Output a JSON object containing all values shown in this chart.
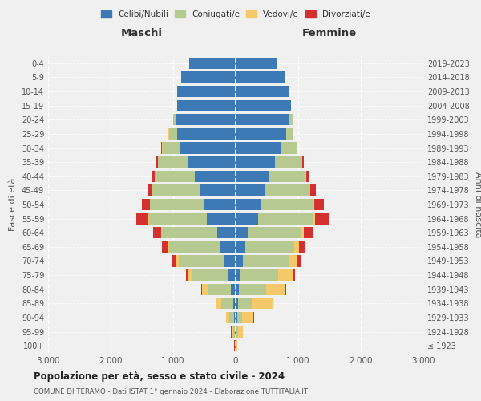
{
  "age_groups": [
    "100+",
    "95-99",
    "90-94",
    "85-89",
    "80-84",
    "75-79",
    "70-74",
    "65-69",
    "60-64",
    "55-59",
    "50-54",
    "45-49",
    "40-44",
    "35-39",
    "30-34",
    "25-29",
    "20-24",
    "15-19",
    "10-14",
    "5-9",
    "0-4"
  ],
  "birth_years": [
    "≤ 1923",
    "1924-1928",
    "1929-1933",
    "1934-1938",
    "1939-1943",
    "1944-1948",
    "1949-1953",
    "1954-1958",
    "1959-1963",
    "1964-1968",
    "1969-1973",
    "1974-1978",
    "1979-1983",
    "1984-1988",
    "1989-1993",
    "1994-1998",
    "1999-2003",
    "2004-2008",
    "2009-2013",
    "2014-2018",
    "2019-2023"
  ],
  "colors": {
    "celibi": "#3d7ab5",
    "coniugati": "#b5c990",
    "vedovi": "#f5c96a",
    "divorziati": "#d43030"
  },
  "males": {
    "celibi": [
      10,
      18,
      28,
      38,
      75,
      120,
      185,
      255,
      300,
      460,
      510,
      580,
      660,
      760,
      880,
      930,
      950,
      930,
      940,
      870,
      750
    ],
    "coniugati": [
      4,
      25,
      70,
      190,
      370,
      580,
      730,
      810,
      880,
      930,
      860,
      760,
      630,
      480,
      290,
      140,
      45,
      8,
      0,
      0,
      0
    ],
    "vedovi": [
      4,
      25,
      55,
      90,
      90,
      55,
      45,
      28,
      18,
      13,
      8,
      4,
      4,
      4,
      4,
      4,
      4,
      0,
      0,
      0,
      0
    ],
    "divorziati": [
      2,
      4,
      4,
      8,
      12,
      45,
      65,
      90,
      120,
      190,
      120,
      70,
      45,
      25,
      12,
      4,
      4,
      0,
      0,
      0,
      0
    ]
  },
  "females": {
    "celibi": [
      8,
      18,
      28,
      38,
      55,
      75,
      120,
      160,
      190,
      360,
      410,
      460,
      540,
      630,
      730,
      810,
      860,
      880,
      860,
      800,
      660
    ],
    "coniugati": [
      4,
      25,
      70,
      220,
      430,
      600,
      730,
      780,
      850,
      880,
      830,
      730,
      580,
      430,
      240,
      110,
      45,
      8,
      0,
      0,
      0
    ],
    "vedovi": [
      8,
      70,
      190,
      330,
      300,
      230,
      140,
      70,
      45,
      25,
      13,
      8,
      4,
      4,
      4,
      4,
      4,
      0,
      0,
      0,
      0
    ],
    "divorziati": [
      2,
      4,
      8,
      8,
      18,
      45,
      65,
      90,
      140,
      220,
      160,
      90,
      45,
      25,
      12,
      4,
      4,
      0,
      0,
      0,
      0
    ]
  },
  "xlim": 3000,
  "title": "Popolazione per età, sesso e stato civile - 2024",
  "subtitle": "COMUNE DI TERAMO - Dati ISTAT 1° gennaio 2024 - Elaborazione TUTTITALIA.IT",
  "ylabel_left": "Fasce di età",
  "ylabel_right": "Anni di nascita",
  "xlabel_left": "Maschi",
  "xlabel_right": "Femmine",
  "legend_labels": [
    "Celibi/Nubili",
    "Coniugati/e",
    "Vedovi/e",
    "Divorziati/e"
  ],
  "xtick_positions": [
    -3000,
    -2000,
    -1000,
    0,
    1000,
    2000,
    3000
  ],
  "xtick_labels": [
    "3.000",
    "2.000",
    "1.000",
    "0",
    "1.000",
    "2.000",
    "3.000"
  ],
  "bg_color": "#f0f0f0"
}
